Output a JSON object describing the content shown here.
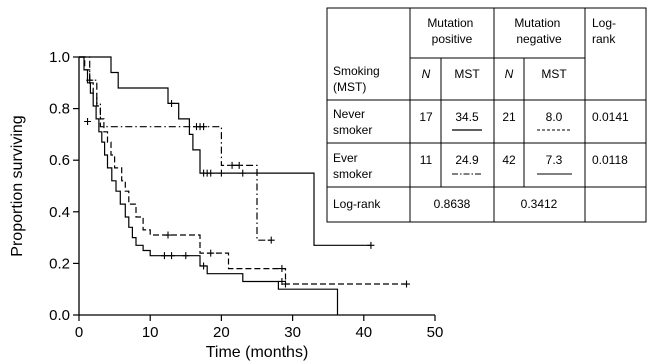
{
  "chart_data": {
    "type": "line",
    "title": "",
    "xlabel": "Time (months)",
    "ylabel": "Proportion surviving",
    "xlim": [
      0,
      50
    ],
    "ylim": [
      0.0,
      1.0
    ],
    "xticks": [
      "0",
      "10",
      "20",
      "30",
      "40",
      "50"
    ],
    "yticks": [
      "0.0",
      "0.2",
      "0.4",
      "0.6",
      "0.8",
      "1.0"
    ],
    "grid": false,
    "series": [
      {
        "style": "solid",
        "color": "#000000",
        "points": [
          [
            0,
            1.0
          ],
          [
            4.5,
            1.0
          ],
          [
            4.5,
            0.94
          ],
          [
            5.5,
            0.94
          ],
          [
            5.5,
            0.88
          ],
          [
            12.5,
            0.88
          ],
          [
            12.5,
            0.82
          ],
          [
            14,
            0.82
          ],
          [
            14,
            0.76
          ],
          [
            15.5,
            0.76
          ],
          [
            15.5,
            0.7
          ],
          [
            16,
            0.7
          ],
          [
            16,
            0.64
          ],
          [
            17,
            0.64
          ],
          [
            17,
            0.55
          ],
          [
            33,
            0.55
          ],
          [
            33,
            0.27
          ],
          [
            41,
            0.27
          ]
        ],
        "censors": [
          [
            13,
            0.82
          ],
          [
            17.5,
            0.55
          ],
          [
            18,
            0.55
          ],
          [
            18.5,
            0.55
          ],
          [
            20,
            0.55
          ],
          [
            23,
            0.55
          ],
          [
            41,
            0.27
          ]
        ]
      },
      {
        "style": "dashdot",
        "color": "#000000",
        "points": [
          [
            0,
            1.0
          ],
          [
            1.5,
            1.0
          ],
          [
            1.5,
            0.91
          ],
          [
            2.5,
            0.91
          ],
          [
            2.5,
            0.82
          ],
          [
            3,
            0.82
          ],
          [
            3,
            0.73
          ],
          [
            20,
            0.73
          ],
          [
            20,
            0.58
          ],
          [
            25,
            0.58
          ],
          [
            25,
            0.29
          ],
          [
            27,
            0.29
          ]
        ],
        "censors": [
          [
            1.5,
            0.91
          ],
          [
            16.5,
            0.73
          ],
          [
            17,
            0.73
          ],
          [
            17.5,
            0.73
          ],
          [
            21.5,
            0.58
          ],
          [
            22.5,
            0.58
          ],
          [
            27,
            0.29
          ]
        ]
      },
      {
        "style": "dashed",
        "color": "#000000",
        "points": [
          [
            0,
            1.0
          ],
          [
            0.8,
            1.0
          ],
          [
            0.8,
            0.95
          ],
          [
            1.5,
            0.95
          ],
          [
            1.5,
            0.9
          ],
          [
            2,
            0.9
          ],
          [
            2,
            0.86
          ],
          [
            2.5,
            0.86
          ],
          [
            2.5,
            0.81
          ],
          [
            3,
            0.81
          ],
          [
            3,
            0.76
          ],
          [
            3.5,
            0.76
          ],
          [
            3.5,
            0.71
          ],
          [
            4,
            0.71
          ],
          [
            4,
            0.67
          ],
          [
            4.5,
            0.67
          ],
          [
            4.5,
            0.62
          ],
          [
            5,
            0.62
          ],
          [
            5,
            0.57
          ],
          [
            6,
            0.57
          ],
          [
            6,
            0.52
          ],
          [
            6.5,
            0.52
          ],
          [
            6.5,
            0.48
          ],
          [
            7,
            0.48
          ],
          [
            7,
            0.43
          ],
          [
            8,
            0.43
          ],
          [
            8,
            0.38
          ],
          [
            9,
            0.38
          ],
          [
            9,
            0.33
          ],
          [
            10,
            0.33
          ],
          [
            10,
            0.31
          ],
          [
            17,
            0.31
          ],
          [
            17,
            0.24
          ],
          [
            21,
            0.24
          ],
          [
            21,
            0.18
          ],
          [
            29,
            0.18
          ],
          [
            29,
            0.12
          ],
          [
            46,
            0.12
          ]
        ],
        "censors": [
          [
            12.5,
            0.31
          ],
          [
            18.5,
            0.24
          ],
          [
            28.5,
            0.18
          ],
          [
            29,
            0.12
          ],
          [
            46,
            0.12
          ]
        ]
      },
      {
        "style": "solid",
        "color": "#000000",
        "points": [
          [
            0,
            1.0
          ],
          [
            0.7,
            1.0
          ],
          [
            0.7,
            0.95
          ],
          [
            1.2,
            0.95
          ],
          [
            1.2,
            0.9
          ],
          [
            1.6,
            0.9
          ],
          [
            1.6,
            0.86
          ],
          [
            2,
            0.86
          ],
          [
            2,
            0.81
          ],
          [
            2.4,
            0.81
          ],
          [
            2.4,
            0.76
          ],
          [
            2.8,
            0.76
          ],
          [
            2.8,
            0.71
          ],
          [
            3.2,
            0.71
          ],
          [
            3.2,
            0.67
          ],
          [
            3.6,
            0.67
          ],
          [
            3.6,
            0.62
          ],
          [
            4,
            0.62
          ],
          [
            4,
            0.57
          ],
          [
            4.6,
            0.57
          ],
          [
            4.6,
            0.52
          ],
          [
            5.2,
            0.52
          ],
          [
            5.2,
            0.48
          ],
          [
            5.8,
            0.48
          ],
          [
            5.8,
            0.43
          ],
          [
            6.5,
            0.43
          ],
          [
            6.5,
            0.38
          ],
          [
            7,
            0.38
          ],
          [
            7,
            0.34
          ],
          [
            7.5,
            0.34
          ],
          [
            7.5,
            0.3
          ],
          [
            8,
            0.3
          ],
          [
            8,
            0.27
          ],
          [
            9,
            0.27
          ],
          [
            9,
            0.25
          ],
          [
            10,
            0.25
          ],
          [
            10,
            0.23
          ],
          [
            17,
            0.23
          ],
          [
            17,
            0.19
          ],
          [
            18,
            0.19
          ],
          [
            18,
            0.16
          ],
          [
            23,
            0.16
          ],
          [
            23,
            0.13
          ],
          [
            28,
            0.13
          ],
          [
            28,
            0.1
          ],
          [
            36.3,
            0.1
          ],
          [
            36.3,
            0.0
          ]
        ],
        "censors": [
          [
            1.2,
            0.75
          ],
          [
            12,
            0.23
          ],
          [
            13,
            0.23
          ],
          [
            15,
            0.23
          ],
          [
            17.5,
            0.19
          ],
          [
            28.5,
            0.13
          ]
        ]
      }
    ],
    "table": {
      "col_headers": [
        "Mutation\npositive",
        "Mutation\nnegative",
        "Log-\nrank"
      ],
      "sub_headers": [
        "Smoking\n(MST)",
        "N",
        "MST",
        "N",
        "MST"
      ],
      "rows": [
        {
          "label": "Never\nsmoker",
          "pos_n": "17",
          "pos_mst": "34.5",
          "neg_n": "21",
          "neg_mst": "8.0",
          "logrank": "0.0141"
        },
        {
          "label": "Ever\nsmoker",
          "pos_n": "11",
          "pos_mst": "24.9",
          "neg_n": "42",
          "neg_mst": "7.3",
          "logrank": "0.0118"
        }
      ],
      "footer": {
        "label": "Log-rank",
        "pos": "0.8638",
        "neg": "0.3412"
      }
    }
  }
}
